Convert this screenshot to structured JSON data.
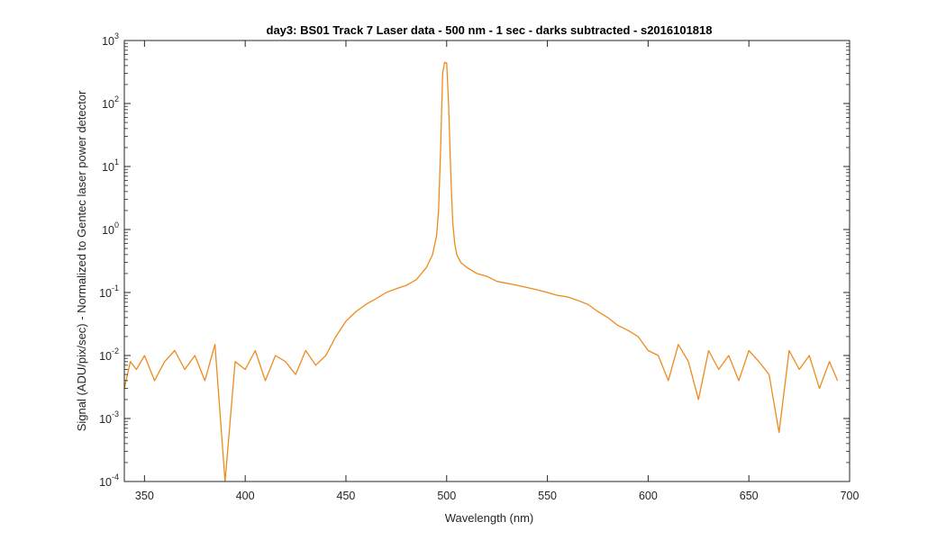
{
  "chart_data": {
    "type": "line",
    "title": "day3: BS01  Track 7 Laser data - 500 nm - 1 sec - darks subtracted - s2016101818",
    "xlabel": "Wavelength (nm)",
    "ylabel": "Signal (ADU/pix/sec) - Normalized to Gentec laser power detector",
    "xlim": [
      340,
      700
    ],
    "ylim": [
      0.0001,
      1000
    ],
    "yscale": "log",
    "grid": false,
    "x_ticks": [
      "350",
      "400",
      "450",
      "500",
      "550",
      "600",
      "650",
      "700"
    ],
    "y_ticks": [
      {
        "base": "10",
        "exp": "-4"
      },
      {
        "base": "10",
        "exp": "-3"
      },
      {
        "base": "10",
        "exp": "-2"
      },
      {
        "base": "10",
        "exp": "-1"
      },
      {
        "base": "10",
        "exp": "0"
      },
      {
        "base": "10",
        "exp": "1"
      },
      {
        "base": "10",
        "exp": "2"
      },
      {
        "base": "10",
        "exp": "3"
      }
    ],
    "series": [
      {
        "color": "#ED8B1E",
        "x": [
          340,
          343,
          346,
          350,
          355,
          360,
          365,
          370,
          375,
          380,
          385,
          390,
          395,
          400,
          405,
          410,
          415,
          420,
          425,
          430,
          435,
          440,
          445,
          450,
          455,
          460,
          465,
          470,
          475,
          480,
          485,
          490,
          493,
          495,
          496,
          497,
          498,
          499,
          500,
          501,
          502,
          503,
          504,
          505,
          507,
          510,
          515,
          520,
          525,
          530,
          535,
          540,
          545,
          550,
          555,
          560,
          565,
          570,
          575,
          580,
          585,
          590,
          595,
          600,
          605,
          610,
          615,
          620,
          625,
          630,
          635,
          640,
          645,
          650,
          655,
          660,
          665,
          670,
          675,
          680,
          685,
          690,
          694
        ],
        "y": [
          0.003,
          0.008,
          0.006,
          0.01,
          0.004,
          0.008,
          0.012,
          0.006,
          0.01,
          0.004,
          0.015,
          0.0001,
          0.008,
          0.006,
          0.012,
          0.004,
          0.01,
          0.008,
          0.005,
          0.012,
          0.007,
          0.01,
          0.02,
          0.035,
          0.05,
          0.065,
          0.08,
          0.1,
          0.115,
          0.13,
          0.16,
          0.25,
          0.4,
          0.8,
          2.0,
          20,
          300,
          450,
          440,
          90,
          8,
          1.3,
          0.6,
          0.4,
          0.3,
          0.25,
          0.2,
          0.18,
          0.15,
          0.14,
          0.13,
          0.12,
          0.11,
          0.1,
          0.09,
          0.085,
          0.075,
          0.065,
          0.05,
          0.04,
          0.03,
          0.025,
          0.02,
          0.012,
          0.01,
          0.004,
          0.015,
          0.008,
          0.002,
          0.012,
          0.006,
          0.01,
          0.004,
          0.012,
          0.008,
          0.005,
          0.0006,
          0.012,
          0.006,
          0.01,
          0.003,
          0.008,
          0.004
        ]
      }
    ]
  }
}
